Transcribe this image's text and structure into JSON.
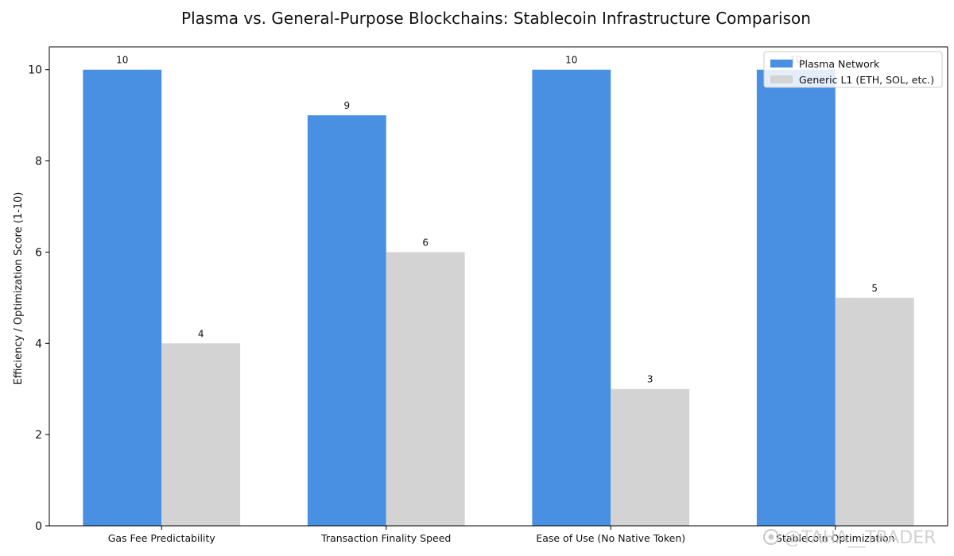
{
  "chart_data": {
    "type": "bar",
    "title": "Plasma vs. General-Purpose Blockchains: Stablecoin Infrastructure Comparison",
    "xlabel": "",
    "ylabel": "Efficiency / Optimization Score (1-10)",
    "categories": [
      "Gas Fee Predictability",
      "Transaction Finality Speed",
      "Ease of Use (No Native Token)",
      "Stablecoin Optimization"
    ],
    "series": [
      {
        "name": "Plasma Network",
        "values": [
          10,
          9,
          10,
          10
        ],
        "color": "#4a90e2"
      },
      {
        "name": "Generic L1 (ETH, SOL, etc.)",
        "values": [
          4,
          6,
          3,
          5
        ],
        "color": "#d3d3d3"
      }
    ],
    "ylim": [
      0,
      10.5
    ],
    "yticks": [
      0,
      2,
      4,
      6,
      8,
      10
    ],
    "data_labels": true,
    "legend_position": "top-right",
    "grid": false
  },
  "watermark": {
    "text": "@TAHA__TRADER",
    "icon": "logo-icon"
  }
}
